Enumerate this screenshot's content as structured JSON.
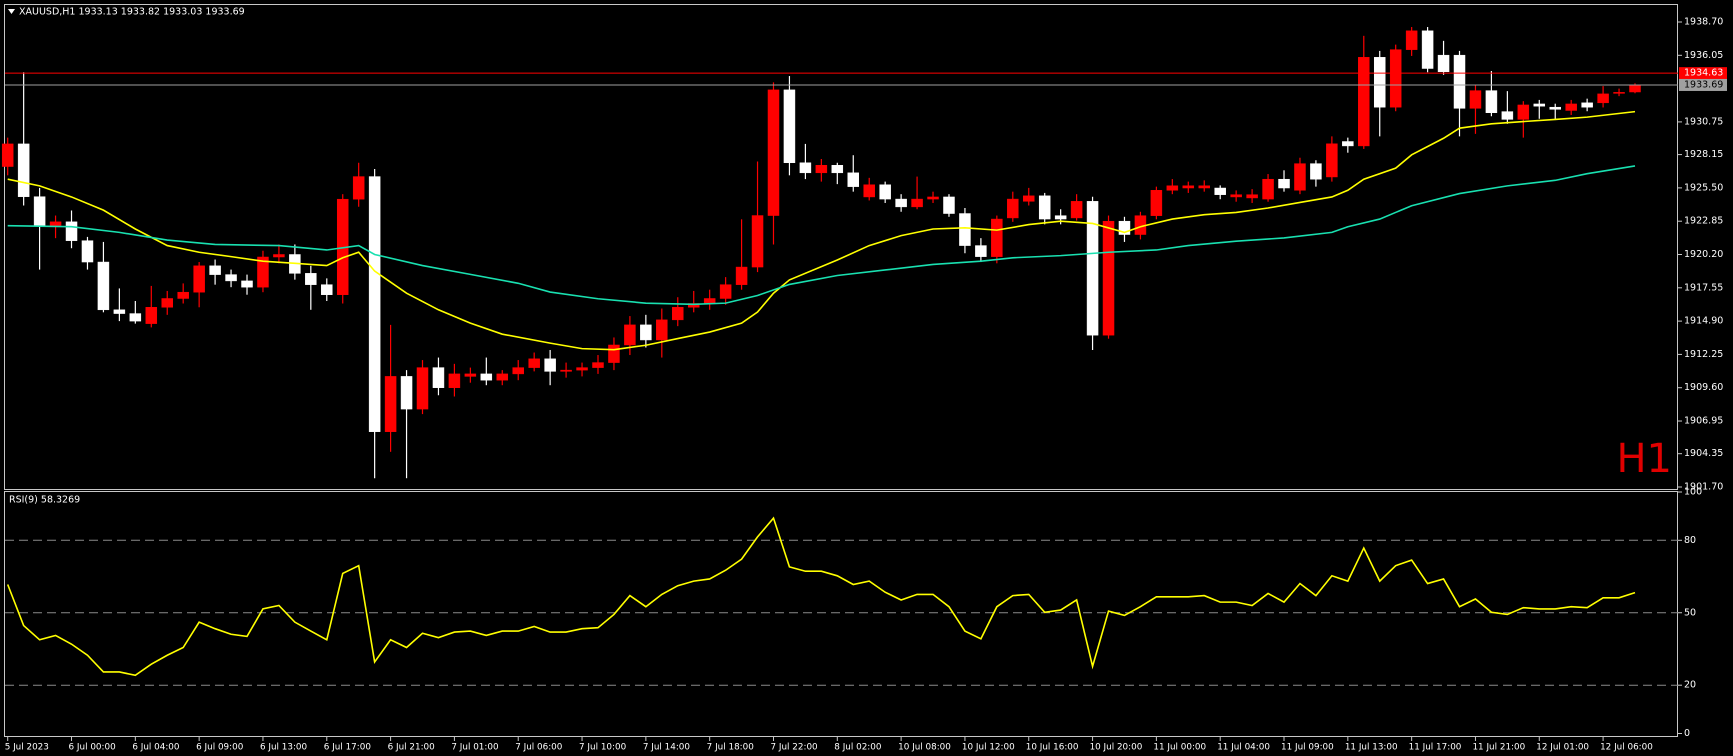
{
  "chart_data": [
    {
      "type": "candlestick",
      "title": "XAUUSD,H1  1933.13 1933.82 1933.03 1933.69",
      "annotation": "H1",
      "up_color": "#ff0000",
      "down_color": "#ffffff",
      "categories": [
        "5 Jul 2023",
        null,
        null,
        null,
        "6 Jul 00:00",
        null,
        null,
        null,
        "6 Jul 04:00",
        null,
        null,
        null,
        "6 Jul 09:00",
        null,
        null,
        null,
        "6 Jul 13:00",
        null,
        null,
        null,
        "6 Jul 17:00",
        null,
        null,
        null,
        "6 Jul 21:00",
        null,
        null,
        null,
        "7 Jul 01:00",
        null,
        null,
        null,
        "7 Jul 06:00",
        null,
        null,
        null,
        "7 Jul 10:00",
        null,
        null,
        null,
        "7 Jul 14:00",
        null,
        null,
        null,
        "7 Jul 18:00",
        null,
        null,
        null,
        "7 Jul 22:00",
        null,
        null,
        null,
        "8 Jul 02:00",
        null,
        null,
        null,
        "10 Jul 08:00",
        null,
        null,
        null,
        "10 Jul 12:00",
        null,
        null,
        null,
        "10 Jul 16:00",
        null,
        null,
        null,
        "10 Jul 20:00",
        null,
        null,
        null,
        "11 Jul 00:00",
        null,
        null,
        null,
        "11 Jul 04:00",
        null,
        null,
        null,
        "11 Jul 09:00",
        null,
        null,
        null,
        "11 Jul 13:00",
        null,
        null,
        null,
        "11 Jul 17:00",
        null,
        null,
        null,
        "11 Jul 21:00",
        null,
        null,
        null,
        "12 Jul 01:00",
        null,
        null,
        null,
        "12 Jul 06:00",
        null,
        null
      ],
      "open": [
        1927.2,
        1929.0,
        1924.8,
        1922.5,
        1922.8,
        1921.3,
        1919.6,
        1915.8,
        1915.5,
        1914.7,
        1916.0,
        1916.7,
        1917.2,
        1919.3,
        1918.6,
        1918.1,
        1917.6,
        1920.0,
        1920.2,
        1918.7,
        1917.8,
        1917.0,
        1924.6,
        1926.4,
        1906.1,
        1910.5,
        1907.9,
        1911.2,
        1909.6,
        1910.5,
        1910.7,
        1910.2,
        1910.7,
        1911.2,
        1911.9,
        1910.9,
        1911.0,
        1911.2,
        1911.6,
        1913.0,
        1914.6,
        1913.4,
        1915.0,
        1916.0,
        1916.3,
        1916.7,
        1917.8,
        1919.2,
        1923.3,
        1933.3,
        1927.5,
        1926.7,
        1927.3,
        1926.7,
        1924.78,
        1925.75,
        1924.61,
        1923.99,
        1924.61,
        1924.78,
        1923.46,
        1920.91,
        1920.03,
        1923.11,
        1924.43,
        1924.87,
        1923.29,
        1923.11,
        1924.43,
        1913.78,
        1922.85,
        1921.79,
        1923.29,
        1925.31,
        1925.49,
        1925.49,
        1925.49,
        1924.78,
        1924.7,
        1924.61,
        1926.19,
        1925.31,
        1927.43,
        1926.37,
        1929.19,
        1928.84,
        1935.89,
        1931.92,
        1936.5,
        1938.0,
        1936.06,
        1936.06,
        1931.83,
        1933.24,
        1931.57,
        1930.95,
        1932.18,
        1931.92,
        1931.66,
        1932.27,
        1932.27,
        1933.07,
        1933.13
      ],
      "high": [
        1929.5,
        1934.7,
        1925.5,
        1923.3,
        1923.7,
        1921.6,
        1921.2,
        1917.5,
        1916.5,
        1917.7,
        1917.3,
        1917.9,
        1919.6,
        1919.8,
        1919.0,
        1918.6,
        1920.5,
        1921.0,
        1921.0,
        1919.3,
        1918.3,
        1925.0,
        1927.5,
        1927.0,
        1914.6,
        1911.0,
        1911.8,
        1912.0,
        1911.5,
        1911.2,
        1912.0,
        1911.0,
        1911.8,
        1912.4,
        1912.6,
        1911.6,
        1911.6,
        1912.2,
        1913.6,
        1915.3,
        1915.4,
        1915.9,
        1916.8,
        1917.3,
        1917.4,
        1918.4,
        1923.0,
        1927.6,
        1933.9,
        1934.4,
        1929.0,
        1927.8,
        1927.5,
        1928.1,
        1926.3,
        1926.0,
        1925.0,
        1926.4,
        1925.2,
        1925.0,
        1923.9,
        1921.5,
        1923.3,
        1925.2,
        1925.5,
        1925.1,
        1923.8,
        1925.0,
        1924.8,
        1923.3,
        1923.2,
        1923.6,
        1925.6,
        1926.2,
        1926.0,
        1926.1,
        1925.7,
        1925.3,
        1925.4,
        1926.6,
        1926.9,
        1927.9,
        1927.7,
        1929.6,
        1929.5,
        1937.6,
        1936.4,
        1936.9,
        1938.3,
        1938.3,
        1937.2,
        1936.4,
        1933.7,
        1934.8,
        1933.2,
        1932.4,
        1932.5,
        1932.2,
        1932.5,
        1932.6,
        1933.6,
        1933.4,
        1933.82
      ],
      "low": [
        1926.5,
        1924.1,
        1919.0,
        1921.5,
        1920.7,
        1919.0,
        1915.6,
        1914.9,
        1914.7,
        1914.4,
        1915.4,
        1916.3,
        1916.0,
        1917.8,
        1917.6,
        1917.0,
        1917.2,
        1919.5,
        1918.2,
        1915.8,
        1916.5,
        1916.3,
        1924.0,
        1902.4,
        1904.5,
        1902.4,
        1907.5,
        1909.0,
        1908.9,
        1910.0,
        1909.8,
        1909.8,
        1910.2,
        1910.9,
        1909.8,
        1910.4,
        1910.5,
        1910.7,
        1911.0,
        1912.2,
        1912.8,
        1912.0,
        1914.5,
        1915.6,
        1915.8,
        1916.2,
        1917.4,
        1918.8,
        1921.0,
        1926.5,
        1926.2,
        1926.0,
        1925.8,
        1925.2,
        1924.5,
        1924.3,
        1923.6,
        1923.8,
        1924.3,
        1923.2,
        1920.3,
        1919.6,
        1919.5,
        1922.8,
        1924.1,
        1922.6,
        1922.6,
        1922.9,
        1912.6,
        1913.5,
        1921.2,
        1921.4,
        1923.0,
        1925.0,
        1925.1,
        1925.2,
        1924.6,
        1924.4,
        1924.3,
        1924.4,
        1925.2,
        1925.0,
        1925.6,
        1926.0,
        1928.3,
        1928.6,
        1929.6,
        1931.6,
        1936.0,
        1934.7,
        1934.5,
        1929.6,
        1929.8,
        1931.2,
        1930.6,
        1929.5,
        1931.0,
        1930.9,
        1931.3,
        1931.6,
        1931.9,
        1932.8,
        1933.03
      ],
      "close": [
        1929.0,
        1924.8,
        1922.5,
        1922.8,
        1921.3,
        1919.6,
        1915.8,
        1915.5,
        1914.9,
        1916.0,
        1916.7,
        1917.2,
        1919.3,
        1918.6,
        1918.1,
        1917.6,
        1920.0,
        1920.2,
        1918.7,
        1917.8,
        1917.0,
        1924.6,
        1926.4,
        1906.1,
        1910.5,
        1907.9,
        1911.2,
        1909.6,
        1910.7,
        1910.7,
        1910.2,
        1910.7,
        1911.2,
        1911.9,
        1910.9,
        1911.0,
        1911.2,
        1911.6,
        1913.0,
        1914.6,
        1913.4,
        1915.0,
        1916.0,
        1916.3,
        1916.7,
        1917.8,
        1919.2,
        1923.3,
        1933.3,
        1927.5,
        1926.7,
        1927.3,
        1926.7,
        1925.6,
        1925.75,
        1924.61,
        1923.99,
        1924.61,
        1924.78,
        1923.46,
        1920.91,
        1920.03,
        1923.02,
        1924.61,
        1924.87,
        1923.02,
        1923.02,
        1924.43,
        1913.78,
        1922.85,
        1921.79,
        1923.29,
        1925.31,
        1925.67,
        1925.67,
        1925.67,
        1924.96,
        1924.96,
        1924.96,
        1926.19,
        1925.49,
        1927.43,
        1926.19,
        1929.01,
        1928.84,
        1935.89,
        1931.92,
        1936.5,
        1938.0,
        1935.0,
        1934.74,
        1931.83,
        1933.24,
        1931.48,
        1930.95,
        1932.1,
        1932.0,
        1931.75,
        1932.18,
        1931.92,
        1932.98,
        1933.1,
        1933.69
      ],
      "series": [
        {
          "type": "line",
          "color": "#ffff00",
          "x": [
            0,
            2,
            4,
            6,
            8,
            10,
            12,
            14,
            16,
            18,
            20,
            21,
            22,
            23,
            25,
            27,
            29,
            31,
            34,
            36,
            38,
            40,
            42,
            44,
            46,
            47,
            48,
            49,
            52,
            54,
            56,
            58,
            60,
            62,
            64,
            66,
            68,
            70,
            71,
            73,
            75,
            77,
            79,
            81,
            83,
            84,
            85,
            87,
            88,
            90,
            91,
            93,
            95,
            97,
            99,
            102
          ],
          "values": [
            1926.19,
            1925.66,
            1924.78,
            1923.73,
            1922.23,
            1920.91,
            1920.38,
            1920.03,
            1919.67,
            1919.5,
            1919.32,
            1919.94,
            1920.38,
            1918.88,
            1917.12,
            1915.8,
            1914.74,
            1913.86,
            1913.15,
            1912.71,
            1912.63,
            1912.98,
            1913.51,
            1914.03,
            1914.74,
            1915.62,
            1917.12,
            1918.18,
            1919.76,
            1920.91,
            1921.7,
            1922.23,
            1922.32,
            1922.14,
            1922.58,
            1922.85,
            1922.67,
            1921.96,
            1922.41,
            1923.02,
            1923.37,
            1923.55,
            1923.9,
            1924.34,
            1924.78,
            1925.31,
            1926.19,
            1927.07,
            1928.13,
            1929.45,
            1930.25,
            1930.6,
            1930.78,
            1930.95,
            1931.13,
            1931.57
          ]
        },
        {
          "type": "line",
          "color": "#19e0b0",
          "x": [
            0,
            4,
            7,
            10,
            13,
            17,
            20,
            22,
            23,
            26,
            29,
            32,
            34,
            37,
            40,
            43,
            45,
            47,
            49,
            52,
            55,
            58,
            61,
            63,
            66,
            69,
            72,
            74,
            77,
            80,
            83,
            84,
            86,
            88,
            91,
            94,
            97,
            99,
            102
          ],
          "values": [
            1922.49,
            1922.41,
            1921.96,
            1921.35,
            1921.0,
            1920.91,
            1920.56,
            1920.91,
            1920.2,
            1919.32,
            1918.62,
            1917.91,
            1917.21,
            1916.68,
            1916.33,
            1916.24,
            1916.33,
            1916.94,
            1917.82,
            1918.53,
            1918.97,
            1919.41,
            1919.67,
            1919.94,
            1920.11,
            1920.38,
            1920.56,
            1920.91,
            1921.26,
            1921.52,
            1921.96,
            1922.41,
            1923.02,
            1924.08,
            1925.05,
            1925.66,
            1926.1,
            1926.63,
            1927.25
          ]
        }
      ],
      "price_lines": [
        {
          "value": 1934.63,
          "color": "#ff0000"
        },
        {
          "value": 1933.69,
          "color": "#a0a0a0"
        }
      ],
      "ylim": [
        1901.7,
        1938.7
      ],
      "yticks": [
        {
          "value": 1938.7,
          "label": "1938.70"
        },
        1936.05,
        1930.75,
        1928.15,
        {
          "value": 1925.5,
          "label": "1925.50"
        },
        1922.85,
        {
          "value": 1920.2,
          "label": "1920.20"
        },
        1917.55,
        {
          "value": 1914.9,
          "label": "1914.90"
        },
        1912.25,
        {
          "value": 1909.6,
          "label": "1909.60"
        },
        1906.95,
        1904.35,
        {
          "value": 1901.7,
          "label": "1901.70"
        }
      ]
    },
    {
      "type": "line",
      "title": "RSI(9) 58.3269",
      "color": "#ffff00",
      "values": [
        61.7,
        44.7,
        38.8,
        40.6,
        37.0,
        32.4,
        25.5,
        25.5,
        24.1,
        28.7,
        32.4,
        35.6,
        46.1,
        43.4,
        41.1,
        40.2,
        51.6,
        53.0,
        46.1,
        42.4,
        38.8,
        66.3,
        69.5,
        29.6,
        38.8,
        35.6,
        41.5,
        39.7,
        42.0,
        42.4,
        40.6,
        42.4,
        42.4,
        44.3,
        42.0,
        42.0,
        43.4,
        43.8,
        49.3,
        57.1,
        52.5,
        57.6,
        61.2,
        63.1,
        64.0,
        67.6,
        72.2,
        81.4,
        89.2,
        69.0,
        67.2,
        67.2,
        65.3,
        61.7,
        63.1,
        58.5,
        55.3,
        57.6,
        57.6,
        52.5,
        42.4,
        39.2,
        52.5,
        57.1,
        57.6,
        50.2,
        51.1,
        55.3,
        27.8,
        50.7,
        48.9,
        52.5,
        56.6,
        56.6,
        56.6,
        57.1,
        54.4,
        54.4,
        53.0,
        58.0,
        54.4,
        62.1,
        57.1,
        65.3,
        63.1,
        76.8,
        63.1,
        69.5,
        71.8,
        62.1,
        64.0,
        52.5,
        55.7,
        50.2,
        49.3,
        52.1,
        51.6,
        51.6,
        52.5,
        52.1,
        56.2,
        56.2,
        58.33
      ],
      "ylim": [
        0,
        100
      ],
      "yticks": [
        0,
        20,
        50,
        80,
        100
      ],
      "grid": "dashed"
    }
  ]
}
